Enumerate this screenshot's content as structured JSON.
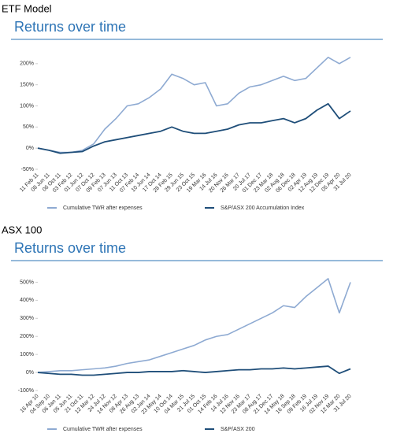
{
  "chart_data": [
    {
      "type": "line",
      "section": "ETF Model",
      "title": "Returns over time",
      "categories": [
        "11 Feb 11",
        "08 Jun 11",
        "06 Oct 11",
        "03 Feb 12",
        "01 Jun 12",
        "07 Oct 12",
        "09 Feb 13",
        "07 Jun 13",
        "11 Oct 13",
        "07 Feb 14",
        "10 Jun 14",
        "17 Oct 14",
        "28 Feb 15",
        "29 Jun 15",
        "23 Oct 15",
        "19 Mar 16",
        "14 Jul 16",
        "20 Nov 16",
        "26 Mar 17",
        "20 Jul 17",
        "01 Dec 17",
        "23 Mar 18",
        "02 Aug 18",
        "06 Dec 18",
        "02 Apr 19",
        "12 Aug 19",
        "12 Dec 19",
        "05 Apr 20",
        "31 Jul 20"
      ],
      "series": [
        {
          "name": "Cumulative TWR after expenses",
          "color": "#8eaad2",
          "values": [
            0,
            -5,
            -10,
            -10,
            -5,
            10,
            45,
            70,
            100,
            105,
            120,
            140,
            175,
            165,
            150,
            155,
            100,
            105,
            130,
            145,
            150,
            160,
            170,
            160,
            165,
            190,
            215,
            200,
            215
          ]
        },
        {
          "name": "S&P/ASX 200 Accumulation Index",
          "color": "#1f4e79",
          "values": [
            0,
            -5,
            -12,
            -10,
            -8,
            5,
            15,
            20,
            25,
            30,
            35,
            40,
            50,
            40,
            35,
            35,
            40,
            45,
            55,
            60,
            60,
            65,
            70,
            60,
            70,
            90,
            105,
            70,
            88
          ]
        }
      ],
      "ylim": [
        -50,
        250
      ],
      "yticks": [
        {
          "value": -50,
          "label": "-50%"
        },
        {
          "value": 0,
          "label": "0%"
        },
        {
          "value": 50,
          "label": "50%"
        },
        {
          "value": 100,
          "label": "100%"
        },
        {
          "value": 150,
          "label": "150%"
        },
        {
          "value": 200,
          "label": "200%"
        }
      ],
      "grid": false
    },
    {
      "type": "line",
      "section": "ASX 100",
      "title": "Returns over time",
      "categories": [
        "16 Apr 10",
        "04 Sep 10",
        "06 Jan 11",
        "05 Jun 11",
        "21 Oct 11",
        "12 Mar 12",
        "24 Jul 12",
        "14 Nov 12",
        "08 Apr 13",
        "26 Aug 13",
        "02 Jan 14",
        "23 May 14",
        "10 Oct 14",
        "04 Mar 15",
        "21 Jul 15",
        "01 Oct 15",
        "14 Feb 16",
        "14 Jul 16",
        "12 Nov 16",
        "23 Mar 17",
        "08 Aug 17",
        "21 Dec 17",
        "14 May 18",
        "16 Sep 18",
        "09 Feb 19",
        "16 Jul 19",
        "02 Nov 19",
        "12 Mar 20",
        "31 Jul 20"
      ],
      "series": [
        {
          "name": "Cumulative TWR after expenses",
          "color": "#8eaad2",
          "values": [
            0,
            5,
            10,
            10,
            15,
            20,
            25,
            35,
            50,
            60,
            70,
            90,
            110,
            130,
            150,
            180,
            200,
            210,
            240,
            270,
            300,
            330,
            370,
            360,
            420,
            470,
            520,
            330,
            500
          ]
        },
        {
          "name": "S&P/ASX 200",
          "color": "#1f4e79",
          "values": [
            0,
            -5,
            -10,
            -10,
            -15,
            -15,
            -10,
            -5,
            0,
            0,
            5,
            5,
            5,
            10,
            5,
            0,
            5,
            10,
            15,
            15,
            20,
            20,
            25,
            20,
            25,
            30,
            35,
            -5,
            20
          ]
        }
      ],
      "ylim": [
        -100,
        550
      ],
      "yticks": [
        {
          "value": -100,
          "label": "-100%"
        },
        {
          "value": 0,
          "label": "0%"
        },
        {
          "value": 100,
          "label": "100%"
        },
        {
          "value": 200,
          "label": "200%"
        },
        {
          "value": 300,
          "label": "300%"
        },
        {
          "value": 400,
          "label": "400%"
        },
        {
          "value": 500,
          "label": "500%"
        }
      ],
      "grid": false
    }
  ]
}
